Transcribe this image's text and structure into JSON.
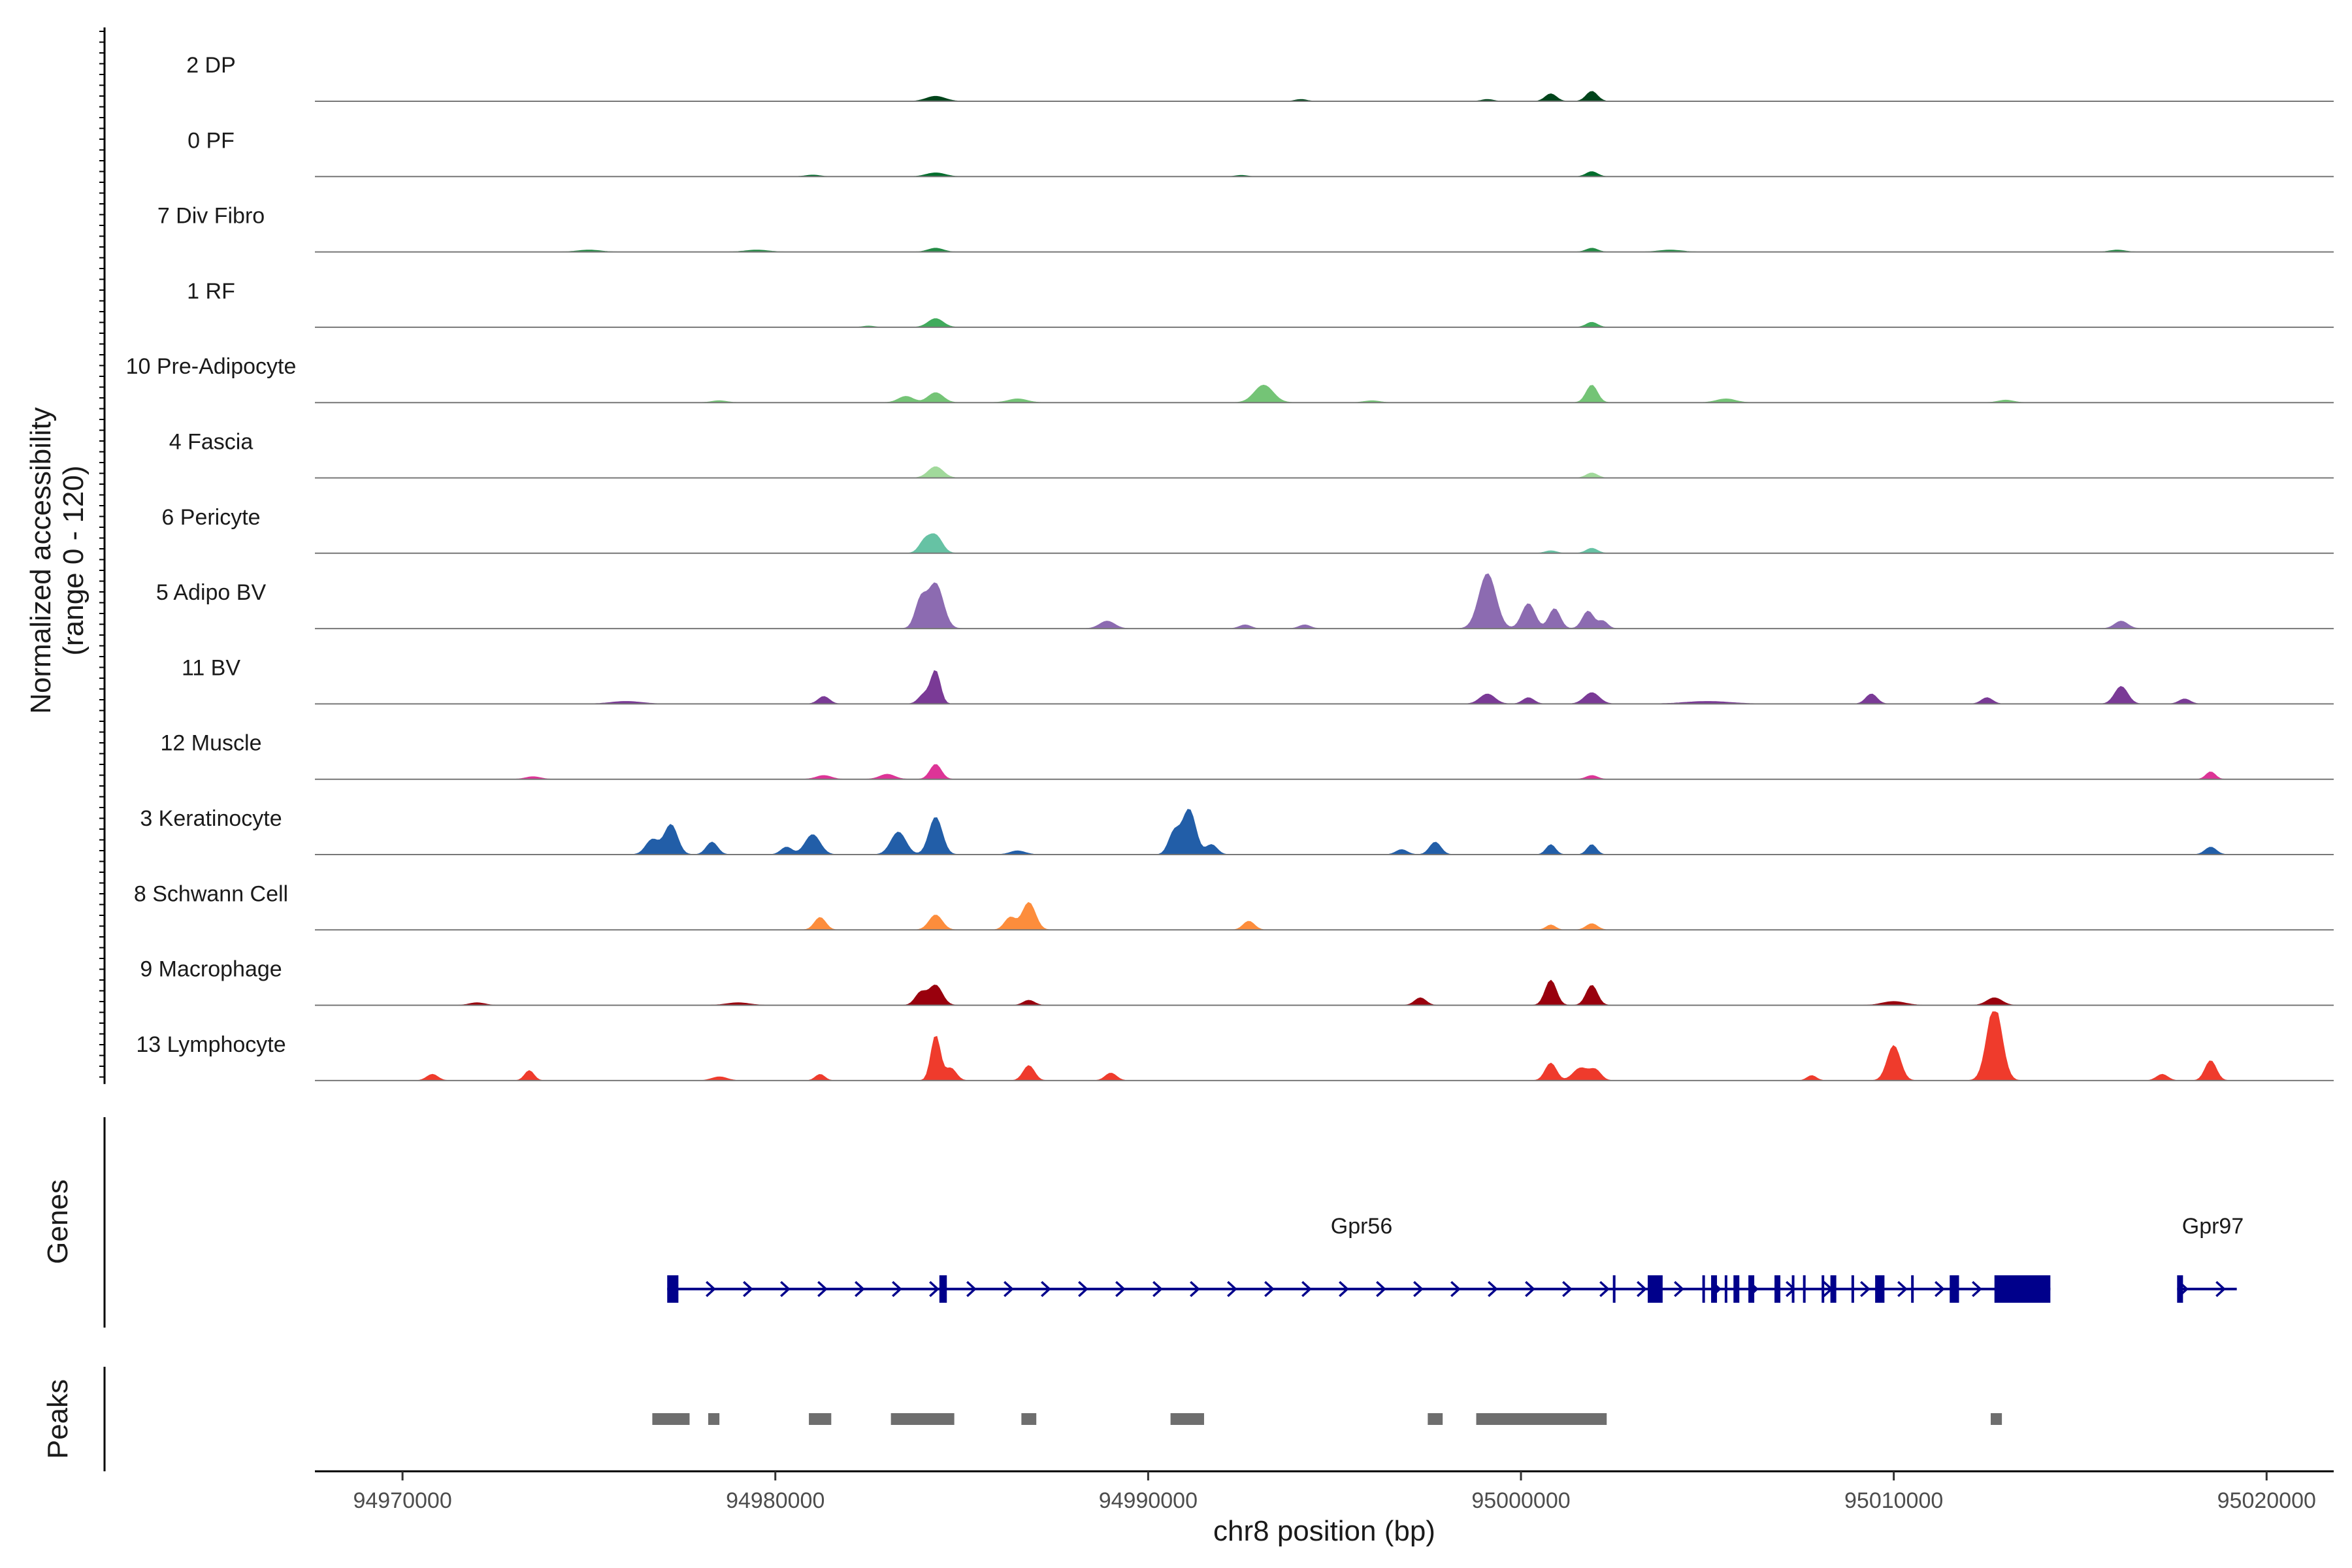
{
  "chart_data": {
    "type": "area",
    "title": "",
    "chromosome": "chr8",
    "xlabel": "chr8 position (bp)",
    "ylabel": "Normalized accessibility",
    "ylabel_range": "(range 0 - 120)",
    "y_range": [
      0,
      120
    ],
    "xlim": [
      94967650,
      95021800
    ],
    "x_ticks": [
      94970000,
      94980000,
      94990000,
      95000000,
      95010000,
      95020000
    ],
    "x_tick_labels": [
      "94970000",
      "94980000",
      "94990000",
      "95000000",
      "95010000",
      "95020000"
    ],
    "tracks": [
      {
        "name": "2 DP",
        "color": "#00441b",
        "peaks": [
          [
            94984300,
            4,
            500
          ],
          [
            95000800,
            6,
            300
          ],
          [
            95001900,
            8,
            300
          ],
          [
            94994100,
            1.5,
            300
          ],
          [
            94999100,
            1.5,
            300
          ]
        ]
      },
      {
        "name": "0 PF",
        "color": "#006d2c",
        "peaks": [
          [
            94984300,
            3,
            500
          ],
          [
            95001900,
            4,
            300
          ],
          [
            94981000,
            1.2,
            400
          ],
          [
            94992500,
            1,
            300
          ]
        ]
      },
      {
        "name": "7 Div Fibro",
        "color": "#238b45",
        "peaks": [
          [
            94984300,
            3,
            400
          ],
          [
            95001900,
            3,
            300
          ],
          [
            94975000,
            1.5,
            600
          ],
          [
            94979500,
            1.5,
            600
          ],
          [
            95004000,
            1.5,
            600
          ],
          [
            95016000,
            1.5,
            400
          ]
        ]
      },
      {
        "name": "1 RF",
        "color": "#41ab5d",
        "peaks": [
          [
            94984300,
            7,
            400
          ],
          [
            95001900,
            4,
            300
          ],
          [
            94982500,
            1,
            300
          ]
        ]
      },
      {
        "name": "10 Pre-Adipocyte",
        "color": "#74c476",
        "peaks": [
          [
            94984300,
            8,
            400
          ],
          [
            94993100,
            14,
            500
          ],
          [
            95001900,
            14,
            300
          ],
          [
            94983500,
            5,
            400
          ],
          [
            94986500,
            3,
            500
          ],
          [
            95005500,
            3,
            500
          ],
          [
            95013000,
            2,
            400
          ],
          [
            94978500,
            1.5,
            400
          ],
          [
            94996000,
            1.5,
            400
          ]
        ]
      },
      {
        "name": "4 Fascia",
        "color": "#a1d99b",
        "peaks": [
          [
            94984300,
            9,
            400
          ],
          [
            95001900,
            4,
            300
          ]
        ]
      },
      {
        "name": "6 Pericyte",
        "color": "#66c2a4",
        "peaks": [
          [
            94984300,
            14,
            350
          ],
          [
            94984000,
            9,
            300
          ],
          [
            95001900,
            4,
            300
          ],
          [
            95000800,
            2,
            300
          ]
        ]
      },
      {
        "name": "5 Adipo BV",
        "color": "#8c6bb1",
        "peaks": [
          [
            94984300,
            36,
            400
          ],
          [
            94983900,
            22,
            300
          ],
          [
            94999100,
            44,
            450
          ],
          [
            95000200,
            20,
            350
          ],
          [
            95000900,
            16,
            300
          ],
          [
            95001800,
            14,
            300
          ],
          [
            95002200,
            6,
            250
          ],
          [
            94988900,
            6,
            400
          ],
          [
            94992600,
            3,
            300
          ],
          [
            94994200,
            3,
            300
          ],
          [
            95016100,
            6,
            350
          ]
        ]
      },
      {
        "name": "11 BV",
        "color": "#7a3a96",
        "peaks": [
          [
            94984300,
            26,
            250
          ],
          [
            94984000,
            8,
            300
          ],
          [
            94981300,
            6,
            300
          ],
          [
            94999100,
            8,
            400
          ],
          [
            95001900,
            9,
            400
          ],
          [
            95000200,
            5,
            300
          ],
          [
            95009400,
            8,
            300
          ],
          [
            95016100,
            14,
            350
          ],
          [
            95012500,
            5,
            300
          ],
          [
            95017800,
            4,
            300
          ],
          [
            94976000,
            2,
            800
          ],
          [
            95005000,
            2,
            1200
          ]
        ]
      },
      {
        "name": "12 Muscle",
        "color": "#dd3497",
        "peaks": [
          [
            94984300,
            12,
            300
          ],
          [
            94983000,
            4,
            400
          ],
          [
            94981300,
            3,
            400
          ],
          [
            95001900,
            3,
            300
          ],
          [
            95018500,
            6,
            250
          ],
          [
            94973500,
            2,
            400
          ]
        ]
      },
      {
        "name": "3 Keratinocyte",
        "color": "#225ea8",
        "peaks": [
          [
            94977200,
            24,
            350
          ],
          [
            94976700,
            12,
            350
          ],
          [
            94978300,
            10,
            300
          ],
          [
            94981000,
            16,
            400
          ],
          [
            94980300,
            6,
            300
          ],
          [
            94983300,
            18,
            400
          ],
          [
            94984300,
            30,
            350
          ],
          [
            94991100,
            36,
            350
          ],
          [
            94990700,
            18,
            300
          ],
          [
            94991700,
            8,
            300
          ],
          [
            94997700,
            10,
            300
          ],
          [
            95000800,
            8,
            250
          ],
          [
            95001900,
            8,
            250
          ],
          [
            94996800,
            4,
            300
          ],
          [
            95018500,
            6,
            300
          ],
          [
            94986500,
            3,
            400
          ]
        ]
      },
      {
        "name": "8 Schwann Cell",
        "color": "#fd8d3c",
        "peaks": [
          [
            94981200,
            10,
            300
          ],
          [
            94984300,
            12,
            350
          ],
          [
            94986800,
            22,
            350
          ],
          [
            94986300,
            10,
            300
          ],
          [
            94992700,
            7,
            300
          ],
          [
            95000800,
            4,
            250
          ],
          [
            95001900,
            5,
            300
          ]
        ]
      },
      {
        "name": "9 Macrophage",
        "color": "#99000d",
        "peaks": [
          [
            94984300,
            16,
            350
          ],
          [
            94983900,
            10,
            300
          ],
          [
            95000800,
            20,
            300
          ],
          [
            95001900,
            16,
            300
          ],
          [
            94997300,
            6,
            300
          ],
          [
            95012700,
            6,
            400
          ],
          [
            95010000,
            3,
            600
          ],
          [
            94986800,
            4,
            300
          ],
          [
            94979000,
            2,
            600
          ],
          [
            94972000,
            2,
            400
          ]
        ]
      },
      {
        "name": "13 Lymphocyte",
        "color": "#ef3b2c",
        "peaks": [
          [
            94984300,
            36,
            250
          ],
          [
            94984700,
            10,
            300
          ],
          [
            94986800,
            12,
            300
          ],
          [
            94973400,
            8,
            250
          ],
          [
            94970800,
            5,
            300
          ],
          [
            94981200,
            5,
            250
          ],
          [
            94989000,
            6,
            300
          ],
          [
            95000800,
            14,
            300
          ],
          [
            95001600,
            10,
            400
          ],
          [
            95002000,
            8,
            300
          ],
          [
            95010000,
            28,
            350
          ],
          [
            95012700,
            60,
            400
          ],
          [
            95018500,
            16,
            300
          ],
          [
            95017200,
            5,
            300
          ],
          [
            95007800,
            4,
            250
          ],
          [
            94978500,
            3,
            400
          ]
        ]
      }
    ],
    "genes": [
      {
        "name": "Gpr56",
        "color": "#00008b",
        "start": 94977100,
        "end": 95014200,
        "strand": "+",
        "exons": [
          [
            94977100,
            94977400
          ],
          [
            94984400,
            94984600
          ],
          [
            95003400,
            95003800
          ],
          [
            95005100,
            95005250
          ],
          [
            95005700,
            95005850
          ],
          [
            95006100,
            95006250
          ],
          [
            95006800,
            95006950
          ],
          [
            95008300,
            95008450
          ],
          [
            95009500,
            95009750
          ],
          [
            95011500,
            95011750
          ],
          [
            95012700,
            95014200
          ]
        ],
        "intron_ticks": [
          95002500,
          95004900,
          95005500,
          95007300,
          95007600,
          95008100,
          95008900,
          95010500
        ]
      },
      {
        "name": "Gpr97",
        "color": "#00008b",
        "start": 95017600,
        "end": 95019200,
        "strand": "+",
        "exons": [
          [
            95017600,
            95017750
          ]
        ],
        "intron_ticks": []
      }
    ],
    "peaks_track": {
      "label": "Peaks",
      "color": "#6e6e6e",
      "regions": [
        [
          94976700,
          94977700
        ],
        [
          94978200,
          94978500
        ],
        [
          94980900,
          94981500
        ],
        [
          94983100,
          94984800
        ],
        [
          94986600,
          94987000
        ],
        [
          94990600,
          94991500
        ],
        [
          94997500,
          94997900
        ],
        [
          94998800,
          95002300
        ],
        [
          95012600,
          95012900
        ]
      ]
    },
    "gene_track_label": "Genes",
    "grid": false,
    "legend": "none"
  }
}
